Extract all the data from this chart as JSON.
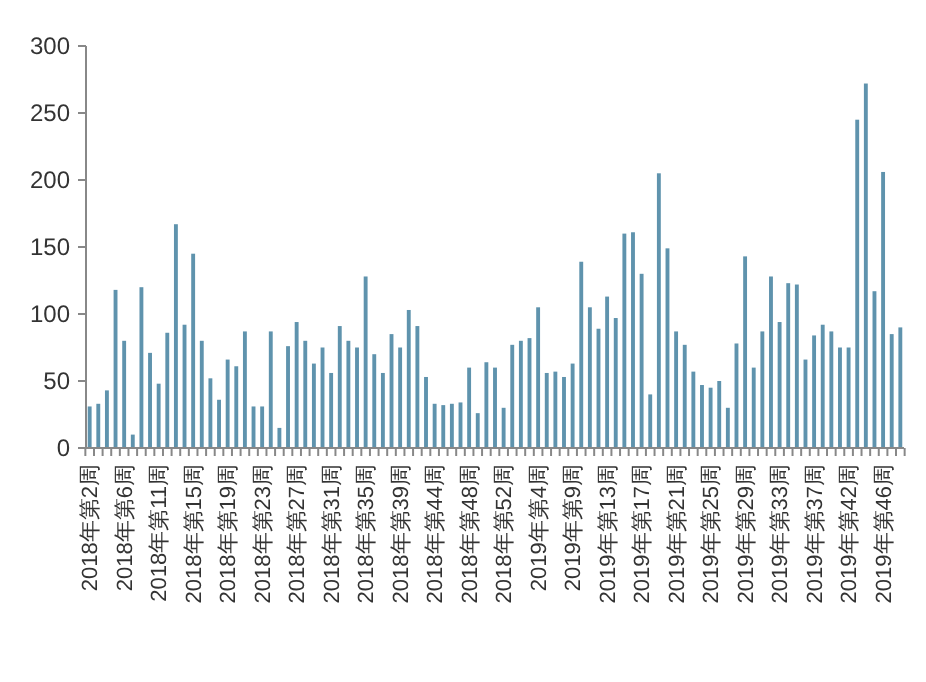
{
  "chart_data": {
    "type": "bar",
    "color": "#5f93ad",
    "categories": [
      "2018年第2周",
      null,
      null,
      null,
      "2018年第6周",
      null,
      null,
      null,
      "2018年第11周",
      null,
      null,
      null,
      "2018年第15周",
      null,
      null,
      null,
      "2018年第19周",
      null,
      null,
      null,
      "2018年第23周",
      null,
      null,
      null,
      "2018年第27周",
      null,
      null,
      null,
      "2018年第31周",
      null,
      null,
      null,
      "2018年第35周",
      null,
      null,
      null,
      "2018年第39周",
      null,
      null,
      null,
      "2018年第44周",
      null,
      null,
      null,
      "2018年第48周",
      null,
      null,
      null,
      "2018年第52周",
      null,
      null,
      null,
      "2019年第4周",
      null,
      null,
      null,
      "2019年第9周",
      null,
      null,
      null,
      "2019年第13周",
      null,
      null,
      null,
      "2019年第17周",
      null,
      null,
      null,
      "2019年第21周",
      null,
      null,
      null,
      "2019年第25周",
      null,
      null,
      null,
      "2019年第29周",
      null,
      null,
      null,
      "2019年第33周",
      null,
      null,
      null,
      "2019年第37周",
      null,
      null,
      null,
      "2019年第42周",
      null,
      null,
      null,
      "2019年第46周",
      null,
      null
    ],
    "values": [
      31,
      33,
      43,
      118,
      80,
      10,
      120,
      71,
      48,
      86,
      167,
      92,
      145,
      80,
      52,
      36,
      66,
      61,
      87,
      31,
      31,
      87,
      15,
      76,
      94,
      80,
      63,
      75,
      56,
      91,
      80,
      75,
      128,
      70,
      56,
      85,
      75,
      103,
      91,
      53,
      33,
      32,
      33,
      34,
      60,
      26,
      64,
      60,
      30,
      77,
      80,
      82,
      105,
      56,
      57,
      53,
      63,
      139,
      105,
      89,
      113,
      97,
      160,
      161,
      130,
      40,
      205,
      149,
      87,
      77,
      57,
      47,
      45,
      50,
      30,
      78,
      143,
      60,
      87,
      128,
      94,
      123,
      122,
      66,
      84,
      92,
      87,
      75,
      75,
      245,
      272,
      117,
      206,
      85,
      90
    ],
    "ylim": [
      0,
      300
    ],
    "yticks": [
      0,
      50,
      100,
      150,
      200,
      250,
      300
    ],
    "grid": false
  }
}
